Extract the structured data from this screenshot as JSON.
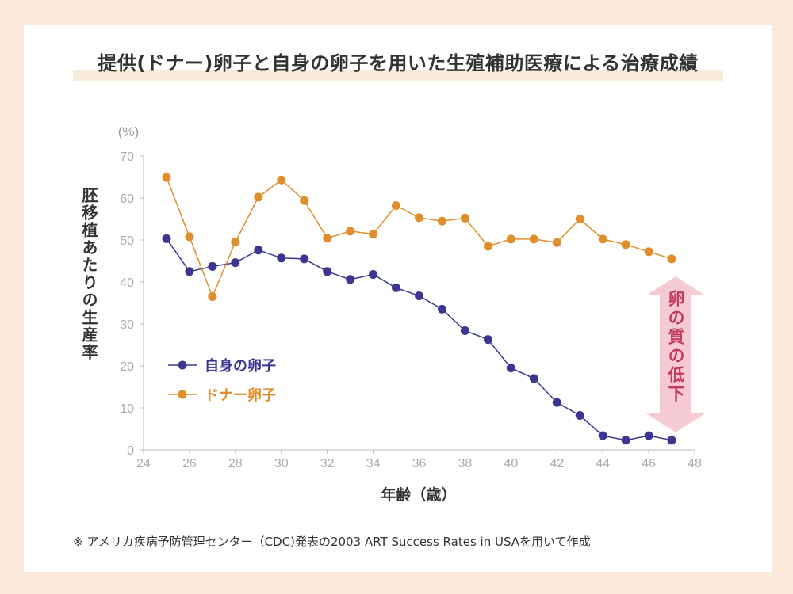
{
  "page": {
    "title": "提供(ドナー)卵子と自身の卵子を用いた生殖補助医療による治療成績",
    "footnote": "※ アメリカ疾病予防管理センター（CDC)発表の2003 ART Success Rates in USAを用いて作成"
  },
  "colors": {
    "background": "#fbe9da",
    "own": "#3d3592",
    "donor": "#e08e2c",
    "arrow": "#f6cad3",
    "arrow_text": "#c23a5e",
    "axis": "#bbbbbb"
  },
  "chart_data": {
    "type": "line",
    "title": "提供(ドナー)卵子と自身の卵子を用いた生殖補助医療による治療成績",
    "xlabel": "年齢（歳）",
    "ylabel": "胚移植あたりの生産率",
    "y_unit": "(%)",
    "xlim": [
      24,
      48
    ],
    "ylim": [
      0,
      70
    ],
    "x_ticks": [
      24,
      26,
      28,
      30,
      32,
      34,
      36,
      38,
      40,
      42,
      44,
      46,
      48
    ],
    "y_ticks": [
      0,
      10,
      20,
      30,
      40,
      50,
      60,
      70
    ],
    "x": [
      25,
      26,
      27,
      28,
      29,
      30,
      31,
      32,
      33,
      34,
      35,
      36,
      37,
      38,
      39,
      40,
      41,
      42,
      43,
      44,
      45,
      46,
      47
    ],
    "series": [
      {
        "name": "自身の卵子",
        "color": "#3d3592",
        "values": [
          50.3,
          42.5,
          43.7,
          44.6,
          47.6,
          45.7,
          45.5,
          42.5,
          40.6,
          41.8,
          38.6,
          36.7,
          33.5,
          28.4,
          26.3,
          19.5,
          17.0,
          11.3,
          8.2,
          3.4,
          2.3,
          3.4,
          2.3
        ]
      },
      {
        "name": "ドナー卵子",
        "color": "#e08e2c",
        "values": [
          64.9,
          50.8,
          36.5,
          49.5,
          60.2,
          64.3,
          59.4,
          50.4,
          52.1,
          51.4,
          58.2,
          55.3,
          54.5,
          55.2,
          48.5,
          50.2,
          50.2,
          49.4,
          55.0,
          50.2,
          48.9,
          47.2,
          45.5
        ]
      }
    ],
    "legend_position": "left-middle",
    "annotation": "卵の質の低下"
  }
}
